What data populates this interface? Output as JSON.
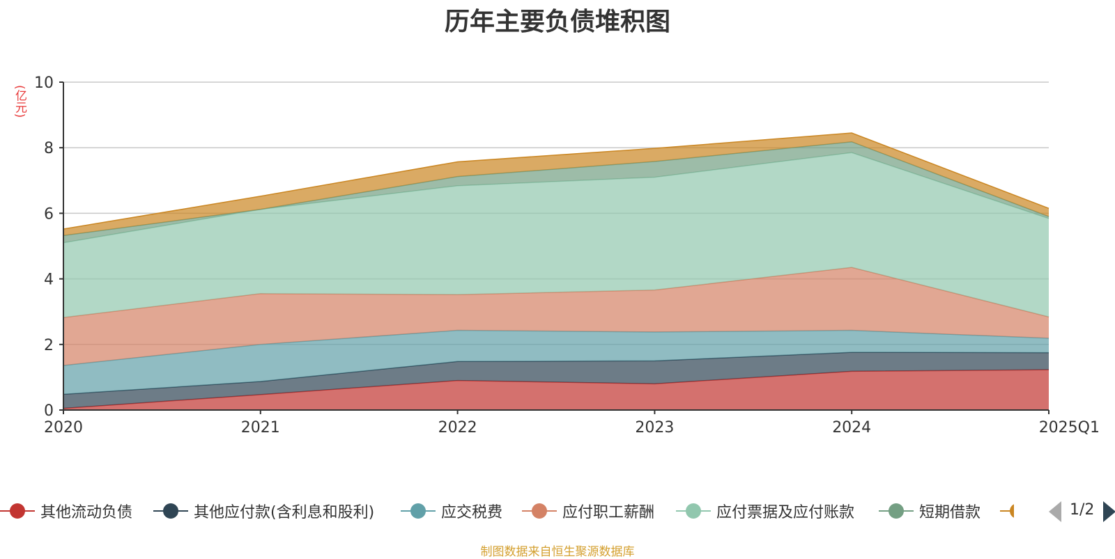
{
  "chart_data": {
    "type": "area",
    "stacked": true,
    "title": "历年主要负债堆积图",
    "ylabel": "(亿元)",
    "xlabel": "",
    "ylim": [
      0,
      10
    ],
    "yticks": [
      0,
      2,
      4,
      6,
      8,
      10
    ],
    "categories": [
      "2020",
      "2021",
      "2022",
      "2023",
      "2024",
      "2025Q1"
    ],
    "grid": true,
    "series": [
      {
        "name": "其他流动负债",
        "color": "#c23531",
        "values": [
          0.05,
          0.47,
          0.9,
          0.8,
          1.18,
          1.23
        ]
      },
      {
        "name": "其他应付款(含利息和股利)",
        "color": "#2f4554",
        "values": [
          0.43,
          0.4,
          0.58,
          0.7,
          0.58,
          0.52
        ]
      },
      {
        "name": "应交税费",
        "color": "#61a0a8",
        "values": [
          0.88,
          1.13,
          0.95,
          0.88,
          0.67,
          0.44
        ]
      },
      {
        "name": "应付职工薪酬",
        "color": "#d48265",
        "values": [
          1.46,
          1.55,
          1.09,
          1.28,
          1.92,
          0.65
        ]
      },
      {
        "name": "应付票据及应付账款",
        "color": "#91c7ae",
        "values": [
          2.28,
          2.57,
          3.32,
          3.44,
          3.5,
          3.0
        ]
      },
      {
        "name": "短期借款",
        "color": "#749f83",
        "values": [
          0.22,
          0.0,
          0.28,
          0.48,
          0.33,
          0.06
        ]
      },
      {
        "name": "",
        "color": "#ca8622",
        "values": [
          0.2,
          0.4,
          0.45,
          0.4,
          0.27,
          0.25
        ]
      }
    ],
    "legend_position": "bottom"
  },
  "legend": {
    "items": [
      "其他流动负债",
      "其他应付款(含利息和股利)",
      "应交税费",
      "应付职工薪酬",
      "应付票据及应付账款",
      "短期借款"
    ],
    "page_indicator": "1/2"
  },
  "source_note": "制图数据来自恒生聚源数据库"
}
